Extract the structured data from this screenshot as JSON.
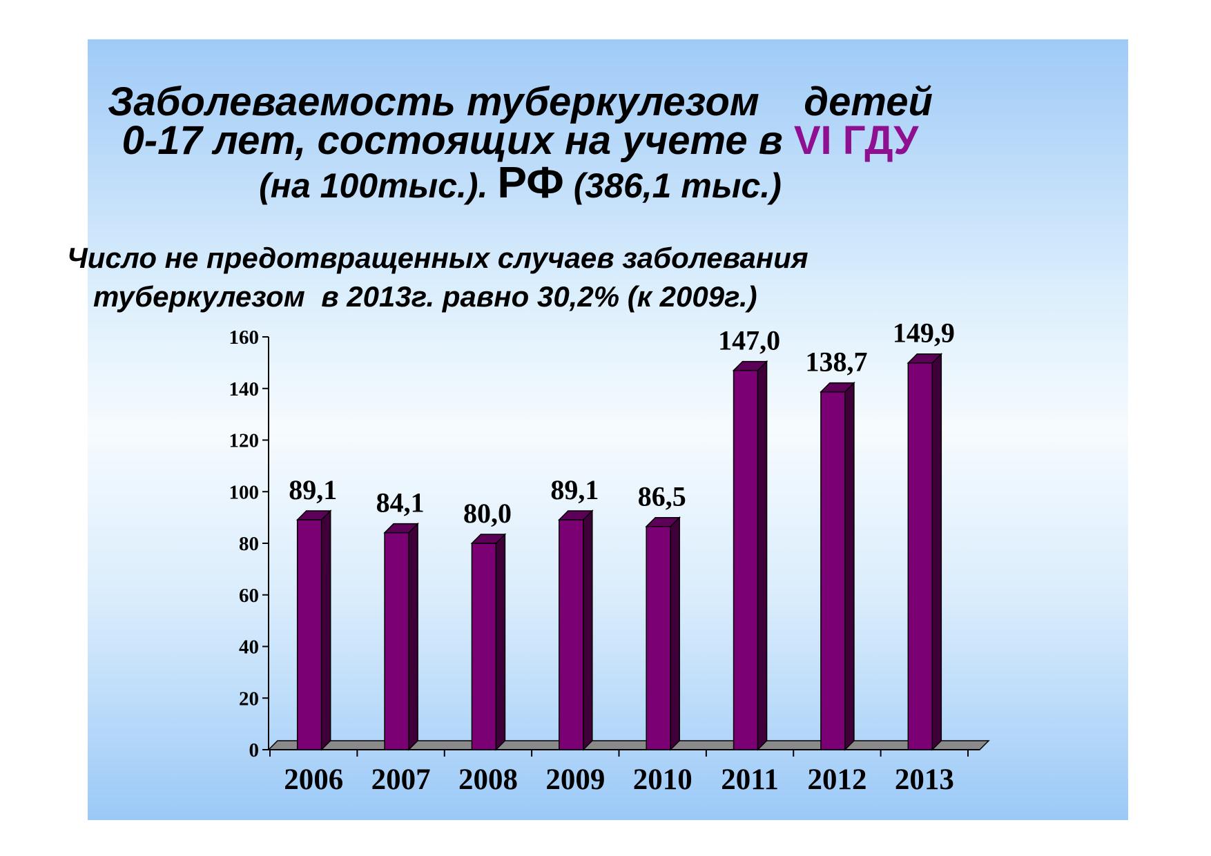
{
  "title": {
    "line1": "Заболеваемость туберкулезом    детей",
    "line2_main": "0-17 лет, состоящих на учете в ",
    "line2_accent": "VI ГДУ",
    "line3_part1": "(на 100тыс.). ",
    "line3_big": "РФ",
    "line3_part2": " (386,1 тыс.)"
  },
  "subtitle": {
    "line1": "Число не предотвращенных случаев заболевания",
    "line2": "туберкулезом  в 2013г. равно 30,2% (к 2009г.)"
  },
  "colors": {
    "bar_front": "#7a0074",
    "bar_side": "#3f003a",
    "bar_top": "#5d0058",
    "floor": "#8a8a8a",
    "accent": "#8e1090"
  },
  "chart_data": {
    "type": "bar",
    "categories": [
      "2006",
      "2007",
      "2008",
      "2009",
      "2010",
      "2011",
      "2012",
      "2013"
    ],
    "values": [
      89.1,
      84.1,
      80.0,
      89.1,
      86.5,
      147.0,
      138.7,
      149.9
    ],
    "data_labels": [
      "89,1",
      "84,1",
      "80,0",
      "89,1",
      "86,5",
      "147,0",
      "138,7",
      "149,9"
    ],
    "ylim": [
      0,
      160
    ],
    "yticks": [
      0,
      20,
      40,
      60,
      80,
      100,
      120,
      140,
      160
    ],
    "grid": false,
    "legend": "none"
  }
}
